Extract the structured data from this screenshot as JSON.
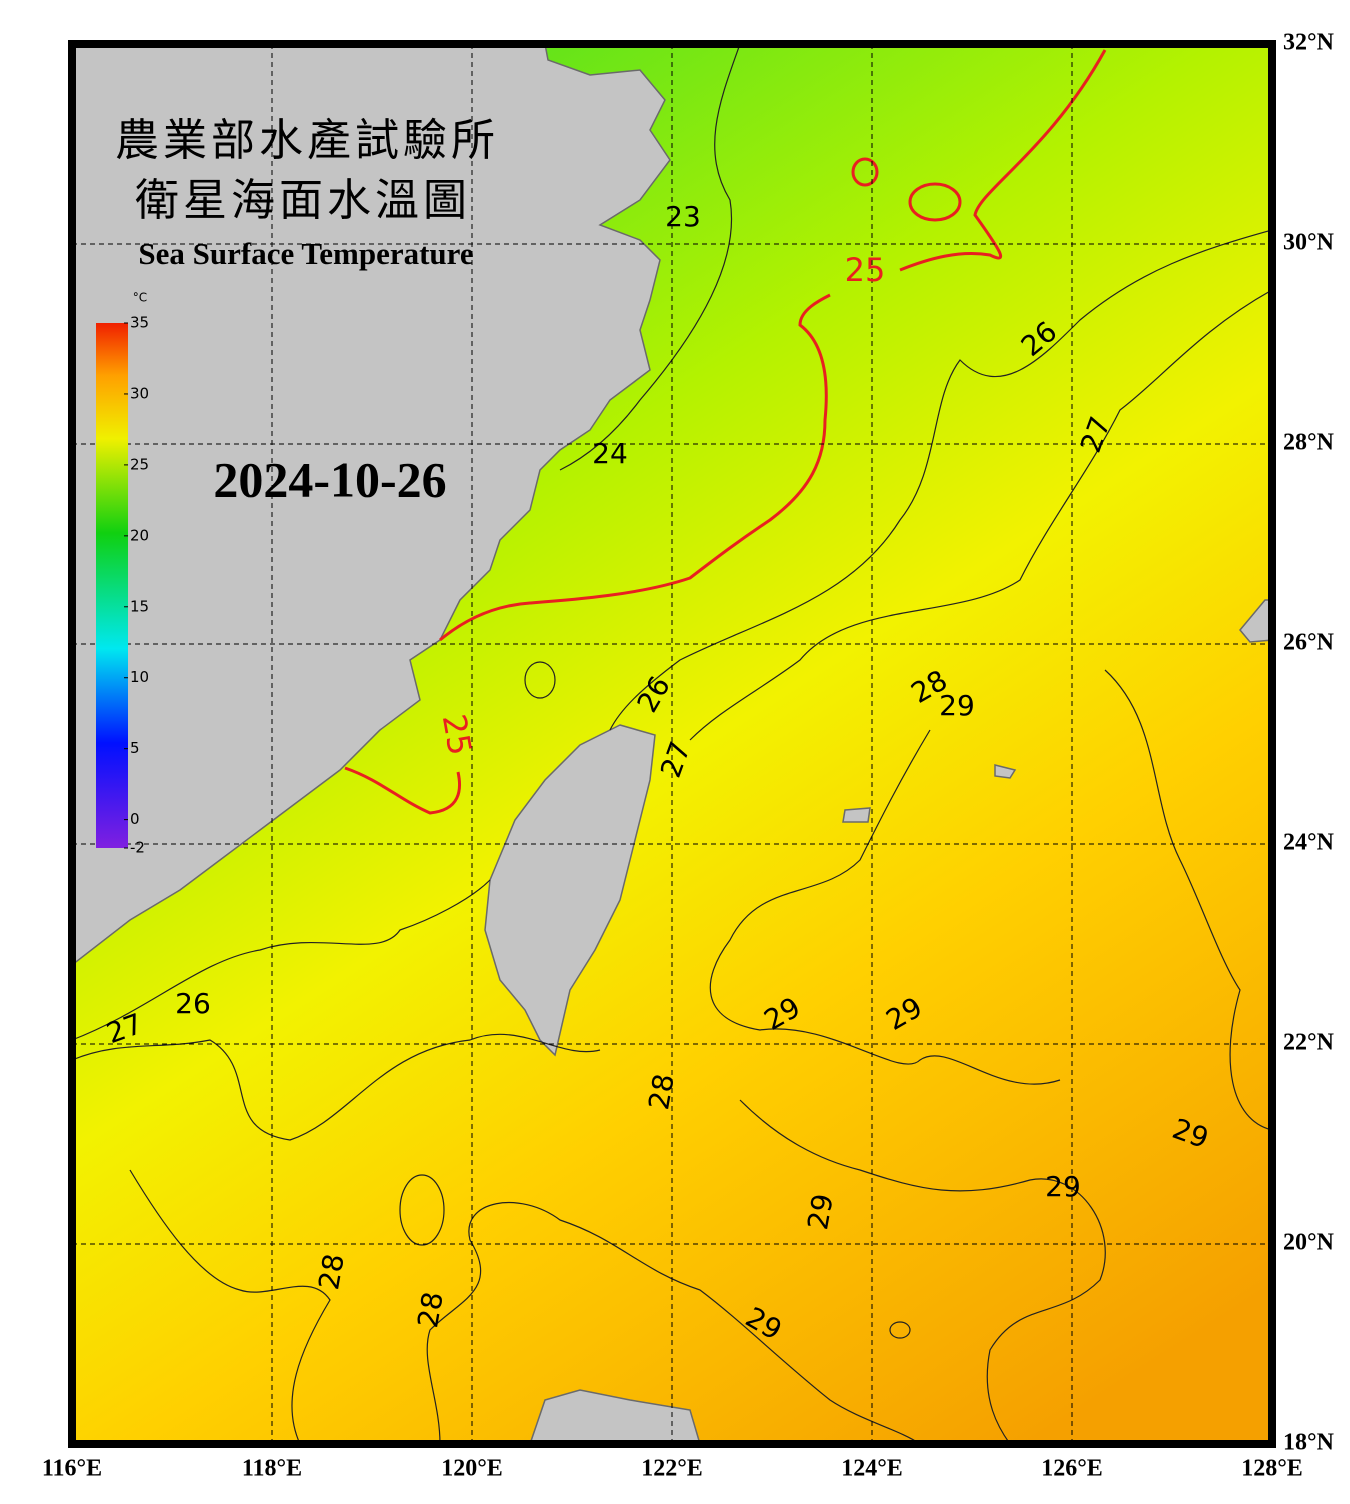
{
  "map": {
    "title_zh_1": "農業部水產試驗所",
    "title_zh_2": "衛星海面水溫圖",
    "title_en": "Sea Surface Temperature",
    "date": "2024-10-26",
    "xlim": [
      116,
      128
    ],
    "ylim": [
      18,
      32
    ],
    "xticks": [
      {
        "value": 116,
        "label": "116°E"
      },
      {
        "value": 118,
        "label": "118°E"
      },
      {
        "value": 120,
        "label": "120°E"
      },
      {
        "value": 122,
        "label": "122°E"
      },
      {
        "value": 124,
        "label": "124°E"
      },
      {
        "value": 126,
        "label": "126°E"
      },
      {
        "value": 128,
        "label": "128°E"
      }
    ],
    "yticks": [
      {
        "value": 18,
        "label": "18°N"
      },
      {
        "value": 20,
        "label": "20°N"
      },
      {
        "value": 22,
        "label": "22°N"
      },
      {
        "value": 24,
        "label": "24°N"
      },
      {
        "value": 26,
        "label": "26°N"
      },
      {
        "value": 28,
        "label": "28°N"
      },
      {
        "value": 30,
        "label": "30°N"
      },
      {
        "value": 32,
        "label": "32°N"
      }
    ],
    "colorbar": {
      "unit": "°C",
      "range": [
        -2,
        35
      ],
      "ticks": [
        35,
        30,
        25,
        20,
        15,
        10,
        5,
        0,
        -2
      ]
    },
    "highlight_isotherm": 25,
    "highlight_color": "#e82020",
    "contour_labels": [
      23,
      24,
      25,
      25,
      26,
      26,
      26,
      27,
      27,
      27,
      28,
      29,
      29,
      29,
      28,
      29,
      29,
      29,
      28,
      28,
      29
    ]
  }
}
